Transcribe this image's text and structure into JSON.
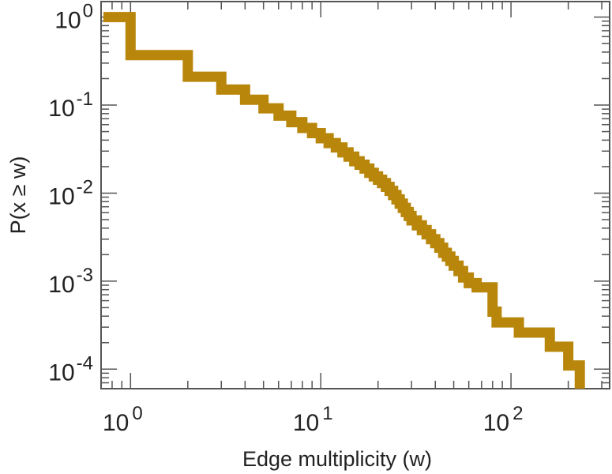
{
  "chart_data": {
    "type": "line",
    "step": true,
    "title": "",
    "xlabel": "Edge multiplicity (w)",
    "ylabel": "P(x ≥ w)",
    "xscale": "log",
    "yscale": "log",
    "xlim": [
      0.7,
      330
    ],
    "ylim": [
      6e-05,
      1.5
    ],
    "grid": false,
    "legend": "none",
    "x_tick_labels": [
      {
        "base": "10",
        "exp": "0"
      },
      {
        "base": "10",
        "exp": "1"
      },
      {
        "base": "10",
        "exp": "2"
      }
    ],
    "y_tick_labels": [
      {
        "base": "10",
        "exp": "0"
      },
      {
        "base": "10",
        "exp": "-1"
      },
      {
        "base": "10",
        "exp": "-2"
      },
      {
        "base": "10",
        "exp": "-3"
      },
      {
        "base": "10",
        "exp": "-4"
      }
    ],
    "series": [
      {
        "color": "#b8860b",
        "x": [
          0.72,
          1,
          2,
          3,
          4,
          5,
          6,
          7,
          8,
          9,
          10,
          11,
          12,
          13,
          14,
          15,
          16,
          17,
          18,
          19,
          20,
          21,
          22,
          23,
          24,
          25,
          26,
          27,
          28,
          29,
          30,
          32,
          34,
          36,
          38,
          40,
          42,
          44,
          46,
          48,
          50,
          53,
          56,
          60,
          66,
          80,
          84,
          110,
          160,
          200,
          230
        ],
        "y": [
          1.0,
          0.37,
          0.21,
          0.15,
          0.115,
          0.092,
          0.076,
          0.064,
          0.055,
          0.048,
          0.042,
          0.037,
          0.033,
          0.029,
          0.026,
          0.023,
          0.021,
          0.019,
          0.017,
          0.0155,
          0.0142,
          0.013,
          0.0118,
          0.0106,
          0.0095,
          0.0085,
          0.0076,
          0.0068,
          0.0061,
          0.0055,
          0.0049,
          0.0043,
          0.0038,
          0.0034,
          0.003,
          0.0027,
          0.0024,
          0.0021,
          0.0019,
          0.0017,
          0.0015,
          0.0013,
          0.0011,
          0.00095,
          0.00085,
          0.00045,
          0.00034,
          0.00026,
          0.00018,
          0.00011,
          8e-05
        ]
      }
    ]
  }
}
